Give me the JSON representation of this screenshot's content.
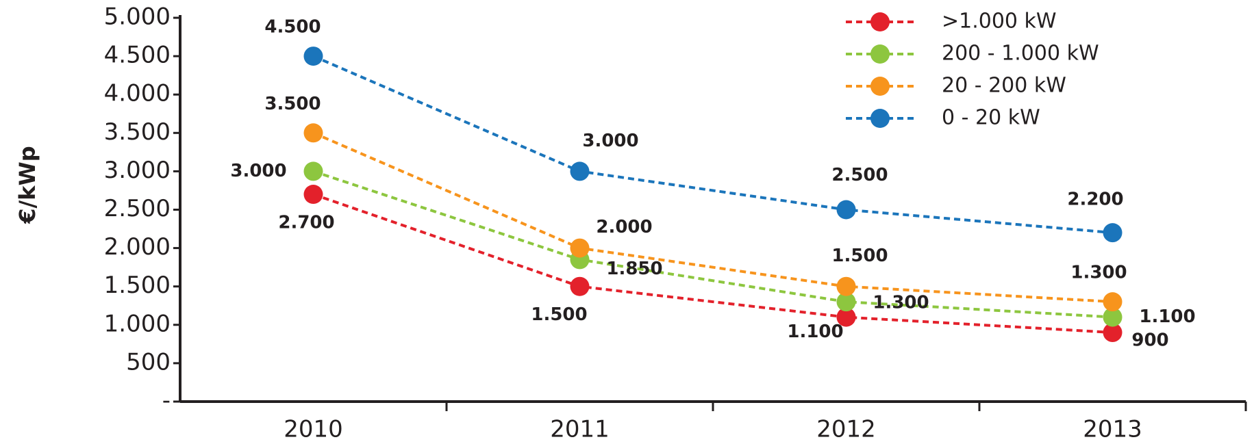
{
  "chart_data": {
    "type": "line",
    "y_label": "€/kWp",
    "categories": [
      "2010",
      "2011",
      "2012",
      "2013"
    ],
    "series": [
      {
        "name": ">1.000 kW",
        "color": "#e3212b",
        "values": [
          2700,
          1500,
          1100,
          900
        ],
        "value_labels": [
          "2.700",
          "1.500",
          "1.100",
          "900"
        ]
      },
      {
        "name": "200 - 1.000 kW",
        "color": "#8dc63f",
        "values": [
          3000,
          1850,
          1300,
          1100
        ],
        "value_labels": [
          "3.000",
          "1.850",
          "1.300",
          "1.100"
        ]
      },
      {
        "name": "20 - 200 kW",
        "color": "#f7941d",
        "values": [
          3500,
          2000,
          1500,
          1300
        ],
        "value_labels": [
          "3.500",
          "2.000",
          "1.500",
          "1.300"
        ]
      },
      {
        "name": "0 - 20 kW",
        "color": "#1b75bb",
        "values": [
          4500,
          3000,
          2500,
          2200
        ],
        "value_labels": [
          "4.500",
          "3.000",
          "2.500",
          "2.200"
        ]
      }
    ],
    "ylim": [
      0,
      5000
    ],
    "yticks": [
      {
        "value": 0,
        "label": "-"
      },
      500,
      {
        "value": 1000,
        "label": "1.000"
      },
      {
        "value": 1500,
        "label": "1.500"
      },
      {
        "value": 2000,
        "label": "2.000"
      },
      {
        "value": 2500,
        "label": "2.500"
      },
      {
        "value": 3000,
        "label": "3.000"
      },
      {
        "value": 3500,
        "label": "3.500"
      },
      {
        "value": 4000,
        "label": "4.000"
      },
      {
        "value": 4500,
        "label": "4.500"
      },
      {
        "value": 5000,
        "label": "5.000"
      }
    ],
    "legend": "upper right",
    "grid": false
  }
}
